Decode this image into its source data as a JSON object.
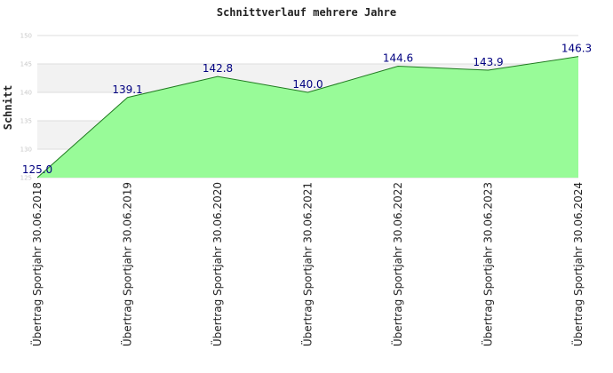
{
  "chart_data": {
    "type": "area",
    "title": "Schnittverlauf mehrere Jahre",
    "xlabel": "",
    "ylabel": "Schnitt",
    "categories": [
      "Übertrag Sportjahr 30.06.2018",
      "Übertrag Sportjahr 30.06.2019",
      "Übertrag Sportjahr 30.06.2020",
      "Übertrag Sportjahr 30.06.2021",
      "Übertrag Sportjahr 30.06.2022",
      "Übertrag Sportjahr 30.06.2023",
      "Übertrag Sportjahr 30.06.2024"
    ],
    "values": [
      125.0,
      139.1,
      142.8,
      140.0,
      144.6,
      143.9,
      146.3
    ],
    "data_labels": [
      "125.0",
      "139.1",
      "142.8",
      "140.0",
      "144.6",
      "143.9",
      "146.3"
    ],
    "ylim": [
      125,
      150
    ],
    "yticks": [
      125,
      130,
      135,
      140,
      145,
      150
    ],
    "ytick_labels": [
      "125",
      "130",
      "135",
      "140",
      "145",
      "150"
    ],
    "grid": true,
    "colors": {
      "fill": "#98fb98",
      "line": "#1f7a1f",
      "band_a": "#ffffff",
      "band_b": "#f2f2f2",
      "grid": "#dddddd",
      "data_label": "#000080"
    }
  }
}
